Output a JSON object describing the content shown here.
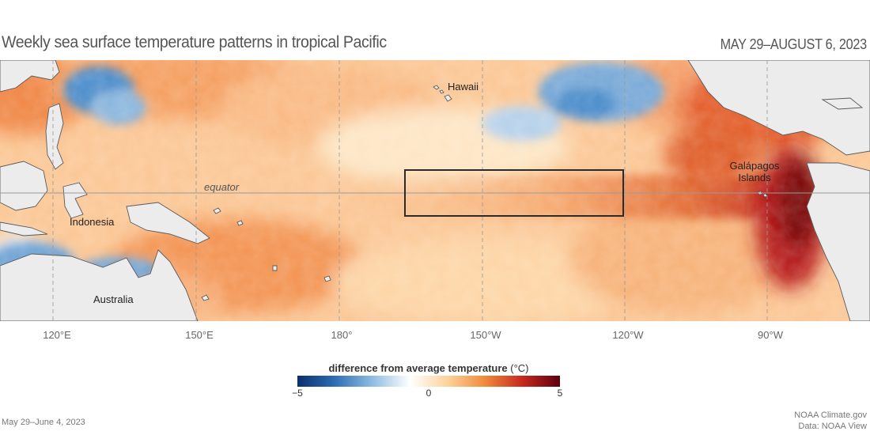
{
  "header": {
    "title": "Weekly sea surface temperature patterns in tropical Pacific",
    "date_range": "MAY 29–AUGUST 6, 2023"
  },
  "map": {
    "labels": {
      "hawaii": "Hawaii",
      "equator": "equator",
      "galapagos_line1": "Galápagos",
      "galapagos_line2": "Islands",
      "indonesia": "Indonesia",
      "australia": "Australia"
    },
    "longitude_labels": [
      "120°E",
      "150°E",
      "180°",
      "150°W",
      "120°W",
      "90°W"
    ],
    "colors": {
      "ocean_base": "#fbc897",
      "land": "#ececec",
      "cold": "#4f8fcb",
      "warm_strong": "#c9261c",
      "warm_extreme": "#7c0b10"
    }
  },
  "legend": {
    "title": "difference from average temperature",
    "unit": "(°C)",
    "min_label": "−5",
    "mid_label": "0",
    "max_label": "5",
    "range": [
      -5,
      5
    ],
    "colors": [
      "#08306b",
      "#2f6db5",
      "#8fbde1",
      "#ffffff",
      "#fcd39a",
      "#f08a3c",
      "#c7281c",
      "#5c0010"
    ]
  },
  "footer": {
    "week": "May 29–June 4, 2023",
    "source_line1": "NOAA Climate.gov",
    "source_line2": "Data: NOAA View"
  }
}
